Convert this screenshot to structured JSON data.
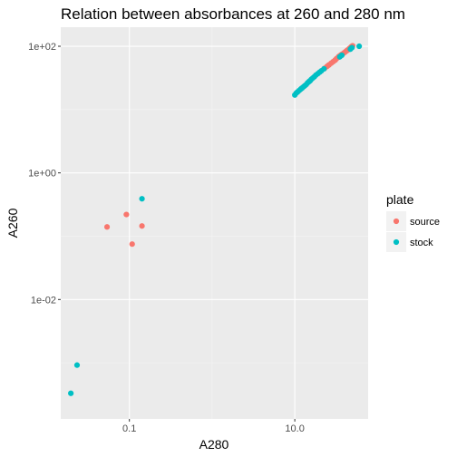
{
  "chart_data": {
    "type": "scatter",
    "title": "Relation between absorbances at 260 and 280 nm",
    "xlabel": "A280",
    "ylabel": "A260",
    "x_scale": "log10",
    "y_scale": "log10",
    "xlim": [
      0.0148,
      77
    ],
    "ylim": [
      0.00013,
      200
    ],
    "x_ticks": [
      {
        "value": 0.1,
        "label": "0.1"
      },
      {
        "value": 10,
        "label": "10.0"
      }
    ],
    "y_ticks": [
      {
        "value": 0.01,
        "label": "1e-02"
      },
      {
        "value": 1,
        "label": "1e+00"
      },
      {
        "value": 100,
        "label": "1e+02"
      }
    ],
    "grid": true,
    "panel_background": "#ebebeb",
    "legend": {
      "title": "plate",
      "position": "right",
      "entries": [
        {
          "name": "source",
          "color": "#F8766D"
        },
        {
          "name": "stock",
          "color": "#00BFC4"
        }
      ]
    },
    "series": [
      {
        "name": "source",
        "color": "#F8766D",
        "points": [
          [
            0.0537,
            0.14
          ],
          [
            0.092,
            0.22
          ],
          [
            0.108,
            0.075
          ],
          [
            0.142,
            0.145
          ],
          [
            23.0,
            45.0
          ],
          [
            24.5,
            48.0
          ],
          [
            26.0,
            51.0
          ],
          [
            27.5,
            54.0
          ],
          [
            29.0,
            57.0
          ],
          [
            30.5,
            60.0
          ],
          [
            32.0,
            64.0
          ],
          [
            33.5,
            67.0
          ],
          [
            35.0,
            70.0
          ],
          [
            36.0,
            73.0
          ],
          [
            38.0,
            76.0
          ],
          [
            39.5,
            79.0
          ],
          [
            41.0,
            82.0
          ],
          [
            42.5,
            85.0
          ],
          [
            44.0,
            88.0
          ],
          [
            45.5,
            92.0
          ],
          [
            47.0,
            95.0
          ],
          [
            48.5,
            99.0
          ],
          [
            50.0,
            102.0
          ],
          [
            25.5,
            50.0
          ],
          [
            31.0,
            61.0
          ],
          [
            37.0,
            74.0
          ],
          [
            43.0,
            86.0
          ],
          [
            34.0,
            69.0
          ]
        ]
      },
      {
        "name": "stock",
        "color": "#00BFC4",
        "points": [
          [
            0.142,
            0.39
          ],
          [
            0.0233,
            0.00092
          ],
          [
            0.0196,
            0.00033
          ],
          [
            10.0,
            17.0
          ],
          [
            10.4,
            18.2
          ],
          [
            10.8,
            19.0
          ],
          [
            11.3,
            20.0
          ],
          [
            11.8,
            21.0
          ],
          [
            12.3,
            22.0
          ],
          [
            12.8,
            23.0
          ],
          [
            13.3,
            24.0
          ],
          [
            13.8,
            25.0
          ],
          [
            14.3,
            26.5
          ],
          [
            14.8,
            27.5
          ],
          [
            15.3,
            28.5
          ],
          [
            15.8,
            30.0
          ],
          [
            16.5,
            31.5
          ],
          [
            17.2,
            33.0
          ],
          [
            18.0,
            35.0
          ],
          [
            19.0,
            37.0
          ],
          [
            20.0,
            39.0
          ],
          [
            21.0,
            41.0
          ],
          [
            22.5,
            44.0
          ],
          [
            35.0,
            68.0
          ],
          [
            37.0,
            72.0
          ],
          [
            47.0,
            90.0
          ],
          [
            49.0,
            95.0
          ],
          [
            60.0,
            100.0
          ],
          [
            12.0,
            21.5
          ],
          [
            15.0,
            28.0
          ]
        ]
      }
    ]
  }
}
